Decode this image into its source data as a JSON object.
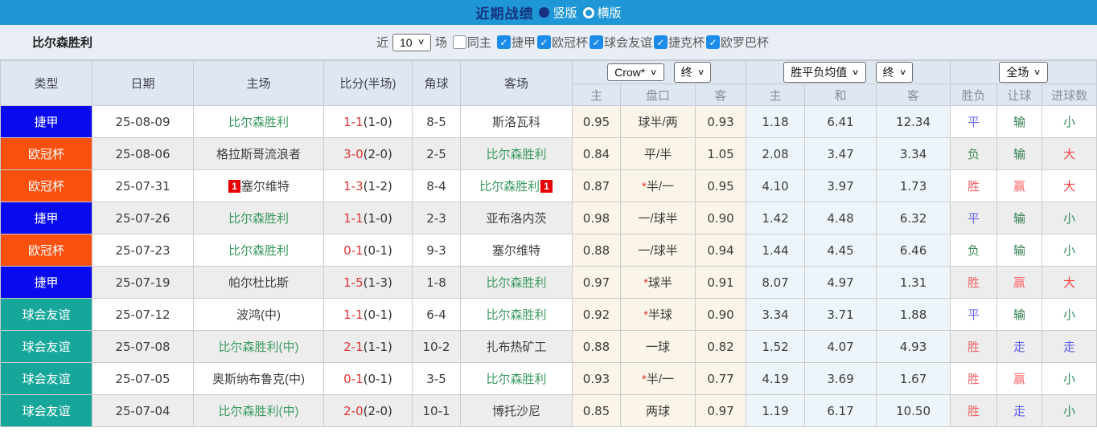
{
  "icons": {
    "chevron": "∨",
    "check": "✓"
  },
  "title_bar": {
    "title": "近期战绩",
    "options": [
      {
        "label": "竖版",
        "selected": true
      },
      {
        "label": "横版",
        "selected": false
      }
    ]
  },
  "filter_bar": {
    "team": "比尔森胜利",
    "near_label": "近",
    "count_value": "10",
    "matches_label": "场",
    "same_home": {
      "label": "同主",
      "checked": false
    },
    "leagues": [
      {
        "label": "捷甲",
        "checked": true
      },
      {
        "label": "欧冠杯",
        "checked": true
      },
      {
        "label": "球会友谊",
        "checked": true
      },
      {
        "label": "捷克杯",
        "checked": true
      },
      {
        "label": "欧罗巴杯",
        "checked": true
      }
    ]
  },
  "table": {
    "headers": [
      "类型",
      "日期",
      "主场",
      "比分(半场)",
      "角球",
      "客场"
    ],
    "selects": {
      "odds_source": "Crow*",
      "odds_time": "终",
      "mean_source": "胜平负均值",
      "mean_time": "终",
      "scope": "全场"
    },
    "subheaders": [
      "主",
      "盘口",
      "客",
      "主",
      "和",
      "客",
      "胜负",
      "让球",
      "进球数"
    ],
    "league_colors": {
      "捷甲": "#0a0aef",
      "欧冠杯": "#fa500f",
      "球会友谊": "#17a79a"
    },
    "result_colors": {
      "胜": "#ef6363",
      "平": "#6b6bf0",
      "负": "#3d8b57",
      "赢": "#fb6a6a",
      "输": "#2f7d4d",
      "走": "#5a5af5",
      "大": "#ff4242",
      "小": "#2f8b57"
    },
    "rows": [
      {
        "league": "捷甲",
        "date": "25-08-09",
        "home": "比尔森胜利",
        "home_hl": true,
        "home_card": "",
        "ft": "1-1",
        "ht": "(1-0)",
        "corners": "8-5",
        "away": "斯洛瓦科",
        "away_hl": false,
        "away_card": "",
        "odds_home": "0.95",
        "handicap": "球半/两",
        "odds_away": "0.93",
        "mean_home": "1.18",
        "mean_draw": "6.41",
        "mean_away": "12.34",
        "result": "平",
        "handicap_result": "输",
        "goals_result": "小"
      },
      {
        "league": "欧冠杯",
        "date": "25-08-06",
        "home": "格拉斯哥流浪者",
        "home_hl": false,
        "home_card": "",
        "ft": "3-0",
        "ht": "(2-0)",
        "corners": "2-5",
        "away": "比尔森胜利",
        "away_hl": true,
        "away_card": "",
        "odds_home": "0.84",
        "handicap": "平/半",
        "odds_away": "1.05",
        "mean_home": "2.08",
        "mean_draw": "3.47",
        "mean_away": "3.34",
        "result": "负",
        "handicap_result": "输",
        "goals_result": "大"
      },
      {
        "league": "欧冠杯",
        "date": "25-07-31",
        "home": "塞尔维特",
        "home_hl": false,
        "home_card": "1",
        "ft": "1-3",
        "ht": "(1-2)",
        "corners": "8-4",
        "away": "比尔森胜利",
        "away_hl": true,
        "away_card": "1",
        "odds_home": "0.87",
        "handicap": "*半/一",
        "odds_away": "0.95",
        "mean_home": "4.10",
        "mean_draw": "3.97",
        "mean_away": "1.73",
        "result": "胜",
        "handicap_result": "赢",
        "goals_result": "大"
      },
      {
        "league": "捷甲",
        "date": "25-07-26",
        "home": "比尔森胜利",
        "home_hl": true,
        "home_card": "",
        "ft": "1-1",
        "ht": "(1-0)",
        "corners": "2-3",
        "away": "亚布洛内茨",
        "away_hl": false,
        "away_card": "",
        "odds_home": "0.98",
        "handicap": "一/球半",
        "odds_away": "0.90",
        "mean_home": "1.42",
        "mean_draw": "4.48",
        "mean_away": "6.32",
        "result": "平",
        "handicap_result": "输",
        "goals_result": "小"
      },
      {
        "league": "欧冠杯",
        "date": "25-07-23",
        "home": "比尔森胜利",
        "home_hl": true,
        "home_card": "",
        "ft": "0-1",
        "ht": "(0-1)",
        "corners": "9-3",
        "away": "塞尔维特",
        "away_hl": false,
        "away_card": "",
        "odds_home": "0.88",
        "handicap": "一/球半",
        "odds_away": "0.94",
        "mean_home": "1.44",
        "mean_draw": "4.45",
        "mean_away": "6.46",
        "result": "负",
        "handicap_result": "输",
        "goals_result": "小"
      },
      {
        "league": "捷甲",
        "date": "25-07-19",
        "home": "帕尔杜比斯",
        "home_hl": false,
        "home_card": "",
        "ft": "1-5",
        "ht": "(1-3)",
        "corners": "1-8",
        "away": "比尔森胜利",
        "away_hl": true,
        "away_card": "",
        "odds_home": "0.97",
        "handicap": "*球半",
        "odds_away": "0.91",
        "mean_home": "8.07",
        "mean_draw": "4.97",
        "mean_away": "1.31",
        "result": "胜",
        "handicap_result": "赢",
        "goals_result": "大"
      },
      {
        "league": "球会友谊",
        "date": "25-07-12",
        "home": "波鸿(中)",
        "home_hl": false,
        "home_card": "",
        "ft": "1-1",
        "ht": "(0-1)",
        "corners": "6-4",
        "away": "比尔森胜利",
        "away_hl": true,
        "away_card": "",
        "odds_home": "0.92",
        "handicap": "*半球",
        "odds_away": "0.90",
        "mean_home": "3.34",
        "mean_draw": "3.71",
        "mean_away": "1.88",
        "result": "平",
        "handicap_result": "输",
        "goals_result": "小"
      },
      {
        "league": "球会友谊",
        "date": "25-07-08",
        "home": "比尔森胜利(中)",
        "home_hl": true,
        "home_card": "",
        "ft": "2-1",
        "ht": "(1-1)",
        "corners": "10-2",
        "away": "扎布热矿工",
        "away_hl": false,
        "away_card": "",
        "odds_home": "0.88",
        "handicap": "一球",
        "odds_away": "0.82",
        "mean_home": "1.52",
        "mean_draw": "4.07",
        "mean_away": "4.93",
        "result": "胜",
        "handicap_result": "走",
        "goals_result": "走"
      },
      {
        "league": "球会友谊",
        "date": "25-07-05",
        "home": "奥斯纳布鲁克(中)",
        "home_hl": false,
        "home_card": "",
        "ft": "0-1",
        "ht": "(0-1)",
        "corners": "3-5",
        "away": "比尔森胜利",
        "away_hl": true,
        "away_card": "",
        "odds_home": "0.93",
        "handicap": "*半/一",
        "odds_away": "0.77",
        "mean_home": "4.19",
        "mean_draw": "3.69",
        "mean_away": "1.67",
        "result": "胜",
        "handicap_result": "赢",
        "goals_result": "小"
      },
      {
        "league": "球会友谊",
        "date": "25-07-04",
        "home": "比尔森胜利(中)",
        "home_hl": true,
        "home_card": "",
        "ft": "2-0",
        "ht": "(2-0)",
        "corners": "10-1",
        "away": "博托沙尼",
        "away_hl": false,
        "away_card": "",
        "odds_home": "0.85",
        "handicap": "两球",
        "odds_away": "0.97",
        "mean_home": "1.19",
        "mean_draw": "6.17",
        "mean_away": "10.50",
        "result": "胜",
        "handicap_result": "走",
        "goals_result": "小"
      }
    ]
  }
}
